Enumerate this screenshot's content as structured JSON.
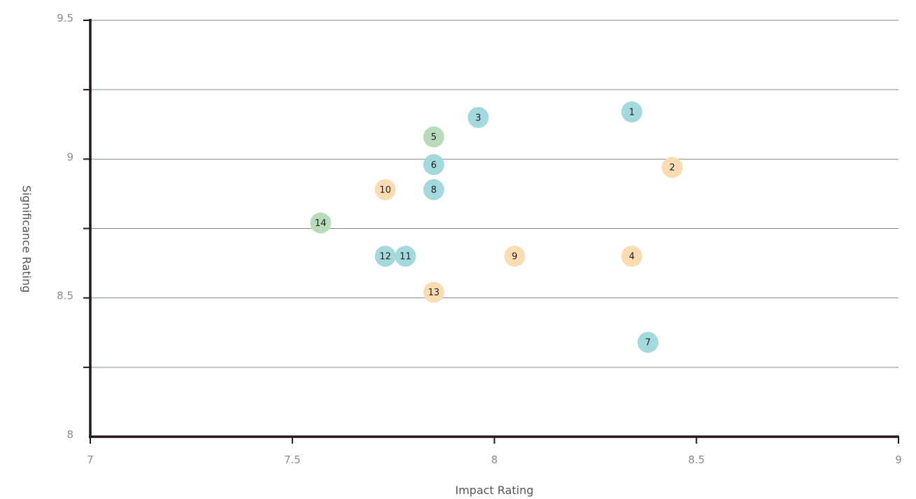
{
  "chart_data": {
    "type": "scatter",
    "xlabel": "Impact Rating",
    "ylabel": "Significance Rating",
    "xlim": [
      7,
      9
    ],
    "ylim": [
      8,
      9.5
    ],
    "x_ticks": [
      7,
      7.5,
      8,
      8.5,
      9
    ],
    "x_tick_labels": [
      "7",
      "7.5",
      "8",
      "8.5",
      "9"
    ],
    "y_ticks": [
      8,
      8.5,
      9,
      9.5
    ],
    "y_tick_labels": [
      "8",
      "8.5",
      "9",
      "9.5"
    ],
    "y_gridlines": [
      8.25,
      8.5,
      8.75,
      9,
      9.25,
      9.5
    ],
    "grid": "horizontal",
    "colors": {
      "teal": "#a3d8dc",
      "peach": "#fbdcb2",
      "green": "#b7dbbb",
      "axis": "#231815",
      "grid": "#8a8a8a",
      "tick_label": "#8c8c8c"
    },
    "points": [
      {
        "label": "1",
        "x": 8.34,
        "y": 9.17,
        "color": "teal"
      },
      {
        "label": "2",
        "x": 8.44,
        "y": 8.97,
        "color": "peach"
      },
      {
        "label": "3",
        "x": 7.96,
        "y": 9.15,
        "color": "teal"
      },
      {
        "label": "4",
        "x": 8.34,
        "y": 8.65,
        "color": "peach"
      },
      {
        "label": "5",
        "x": 7.85,
        "y": 9.08,
        "color": "green"
      },
      {
        "label": "6",
        "x": 7.85,
        "y": 8.98,
        "color": "teal"
      },
      {
        "label": "7",
        "x": 8.38,
        "y": 8.34,
        "color": "teal"
      },
      {
        "label": "8",
        "x": 7.85,
        "y": 8.89,
        "color": "teal"
      },
      {
        "label": "9",
        "x": 8.05,
        "y": 8.65,
        "color": "peach"
      },
      {
        "label": "10",
        "x": 7.73,
        "y": 8.89,
        "color": "peach"
      },
      {
        "label": "11",
        "x": 7.78,
        "y": 8.65,
        "color": "teal"
      },
      {
        "label": "12",
        "x": 7.73,
        "y": 8.65,
        "color": "teal"
      },
      {
        "label": "13",
        "x": 7.85,
        "y": 8.52,
        "color": "peach"
      },
      {
        "label": "14",
        "x": 7.57,
        "y": 8.77,
        "color": "green"
      }
    ]
  }
}
